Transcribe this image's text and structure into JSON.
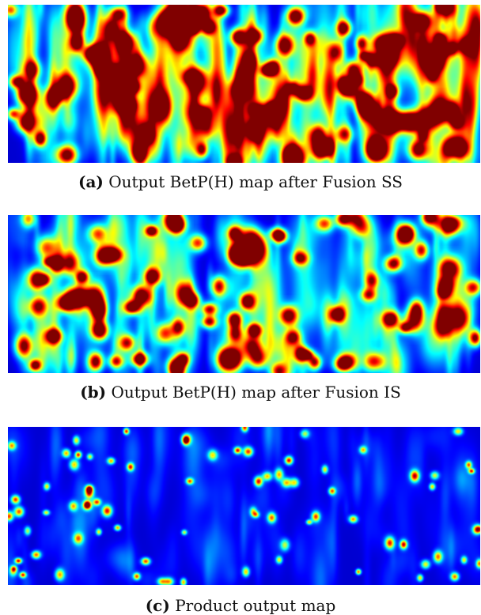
{
  "figures": [
    {
      "id": "a",
      "tag": "(a)",
      "caption": "Output BetP(H) map after Fusion SS"
    },
    {
      "id": "b",
      "tag": "(b)",
      "caption": "Output BetP(H) map after Fusion IS"
    },
    {
      "id": "c",
      "tag": "(c)",
      "caption": "Product output map"
    }
  ],
  "colormap": {
    "name": "jet",
    "background": "#00008a"
  }
}
